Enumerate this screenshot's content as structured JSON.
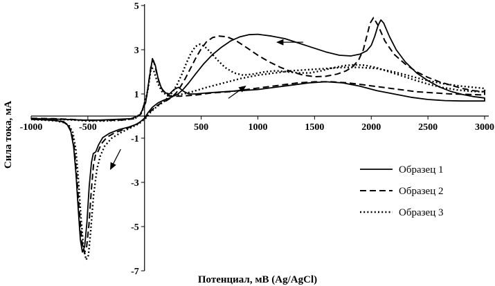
{
  "chart_data": {
    "type": "line",
    "title": "",
    "xlabel": "Потенциал, мВ (Ag/AgCl)",
    "ylabel": "Сила тока, мА",
    "xlim": [
      -1000,
      3000
    ],
    "ylim": [
      -7,
      5
    ],
    "grid": false,
    "legend_position": "right-middle",
    "line_color": "#000000",
    "x_ticks": [
      {
        "v": -1000,
        "label": "-1000"
      },
      {
        "v": -500,
        "label": "-500"
      },
      {
        "v": 0,
        "label": ""
      },
      {
        "v": 500,
        "label": "500"
      },
      {
        "v": 1000,
        "label": "1000"
      },
      {
        "v": 1500,
        "label": "1500"
      },
      {
        "v": 2000,
        "label": "2000"
      },
      {
        "v": 2500,
        "label": "2500"
      },
      {
        "v": 3000,
        "label": "3000"
      }
    ],
    "y_ticks": [
      {
        "v": 5,
        "label": "5"
      },
      {
        "v": 3,
        "label": "3"
      },
      {
        "v": 1,
        "label": "1"
      },
      {
        "v": -1,
        "label": "-1"
      },
      {
        "v": -3,
        "label": "-3"
      },
      {
        "v": -5,
        "label": "-5"
      },
      {
        "v": -7,
        "label": "-7"
      }
    ],
    "series": [
      {
        "name": "Образец 1",
        "style": "solid",
        "points": [
          [
            -1000,
            -0.12
          ],
          [
            -850,
            -0.13
          ],
          [
            -700,
            -0.15
          ],
          [
            -550,
            -0.18
          ],
          [
            -400,
            -0.18
          ],
          [
            -250,
            -0.15
          ],
          [
            -120,
            -0.12
          ],
          [
            -40,
            0.05
          ],
          [
            10,
            0.6
          ],
          [
            45,
            1.8
          ],
          [
            70,
            2.6
          ],
          [
            95,
            2.3
          ],
          [
            120,
            1.7
          ],
          [
            150,
            1.25
          ],
          [
            185,
            1.05
          ],
          [
            220,
            1.0
          ],
          [
            260,
            1.2
          ],
          [
            300,
            1.3
          ],
          [
            345,
            1.12
          ],
          [
            390,
            1.0
          ],
          [
            450,
            1.0
          ],
          [
            560,
            1.05
          ],
          [
            700,
            1.1
          ],
          [
            850,
            1.15
          ],
          [
            1000,
            1.2
          ],
          [
            1150,
            1.3
          ],
          [
            1300,
            1.4
          ],
          [
            1450,
            1.5
          ],
          [
            1600,
            1.55
          ],
          [
            1750,
            1.5
          ],
          [
            1900,
            1.35
          ],
          [
            2050,
            1.15
          ],
          [
            2200,
            1.0
          ],
          [
            2350,
            0.85
          ],
          [
            2500,
            0.75
          ],
          [
            2650,
            0.7
          ],
          [
            2800,
            0.68
          ],
          [
            3000,
            0.68
          ],
          [
            3000,
            0.82
          ],
          [
            2900,
            0.88
          ],
          [
            2800,
            0.98
          ],
          [
            2700,
            1.12
          ],
          [
            2600,
            1.32
          ],
          [
            2500,
            1.6
          ],
          [
            2400,
            1.95
          ],
          [
            2300,
            2.45
          ],
          [
            2220,
            3.0
          ],
          [
            2160,
            3.6
          ],
          [
            2110,
            4.2
          ],
          [
            2085,
            4.35
          ],
          [
            2060,
            4.1
          ],
          [
            2030,
            3.6
          ],
          [
            2000,
            3.2
          ],
          [
            1960,
            2.95
          ],
          [
            1900,
            2.8
          ],
          [
            1820,
            2.72
          ],
          [
            1720,
            2.75
          ],
          [
            1600,
            2.9
          ],
          [
            1480,
            3.1
          ],
          [
            1360,
            3.3
          ],
          [
            1240,
            3.5
          ],
          [
            1120,
            3.62
          ],
          [
            1000,
            3.7
          ],
          [
            920,
            3.68
          ],
          [
            840,
            3.58
          ],
          [
            760,
            3.4
          ],
          [
            680,
            3.12
          ],
          [
            600,
            2.78
          ],
          [
            520,
            2.35
          ],
          [
            450,
            1.9
          ],
          [
            390,
            1.5
          ],
          [
            340,
            1.2
          ],
          [
            295,
            1.0
          ],
          [
            255,
            0.9
          ],
          [
            215,
            0.8
          ],
          [
            170,
            0.72
          ],
          [
            120,
            0.6
          ],
          [
            70,
            0.4
          ],
          [
            30,
            0.15
          ],
          [
            0,
            -0.1
          ],
          [
            -60,
            -0.35
          ],
          [
            -140,
            -0.5
          ],
          [
            -230,
            -0.62
          ],
          [
            -310,
            -0.78
          ],
          [
            -370,
            -0.98
          ],
          [
            -405,
            -1.3
          ],
          [
            -430,
            -1.62
          ],
          [
            -452,
            -1.7
          ],
          [
            -468,
            -2.1
          ],
          [
            -488,
            -3.2
          ],
          [
            -508,
            -4.8
          ],
          [
            -528,
            -5.9
          ],
          [
            -548,
            -6.15
          ],
          [
            -566,
            -5.6
          ],
          [
            -585,
            -4.2
          ],
          [
            -605,
            -2.6
          ],
          [
            -625,
            -1.4
          ],
          [
            -650,
            -0.7
          ],
          [
            -680,
            -0.4
          ],
          [
            -720,
            -0.26
          ],
          [
            -790,
            -0.2
          ],
          [
            -880,
            -0.17
          ],
          [
            -1000,
            -0.15
          ]
        ]
      },
      {
        "name": "Образец 2",
        "style": "dashed",
        "points": [
          [
            -1000,
            -0.1
          ],
          [
            -800,
            -0.12
          ],
          [
            -650,
            -0.15
          ],
          [
            -500,
            -0.2
          ],
          [
            -350,
            -0.2
          ],
          [
            -200,
            -0.18
          ],
          [
            -90,
            -0.12
          ],
          [
            -30,
            0.1
          ],
          [
            20,
            0.9
          ],
          [
            55,
            2.2
          ],
          [
            80,
            2.5
          ],
          [
            105,
            2.0
          ],
          [
            135,
            1.4
          ],
          [
            175,
            1.05
          ],
          [
            230,
            0.9
          ],
          [
            320,
            0.9
          ],
          [
            450,
            0.95
          ],
          [
            600,
            1.05
          ],
          [
            750,
            1.1
          ],
          [
            900,
            1.2
          ],
          [
            1050,
            1.3
          ],
          [
            1200,
            1.4
          ],
          [
            1350,
            1.5
          ],
          [
            1500,
            1.55
          ],
          [
            1650,
            1.55
          ],
          [
            1800,
            1.5
          ],
          [
            1950,
            1.4
          ],
          [
            2100,
            1.3
          ],
          [
            2250,
            1.2
          ],
          [
            2400,
            1.1
          ],
          [
            2550,
            1.05
          ],
          [
            2700,
            1.0
          ],
          [
            2850,
            0.98
          ],
          [
            3000,
            0.95
          ],
          [
            3000,
            1.1
          ],
          [
            2900,
            1.15
          ],
          [
            2800,
            1.25
          ],
          [
            2700,
            1.4
          ],
          [
            2600,
            1.55
          ],
          [
            2500,
            1.75
          ],
          [
            2400,
            2.0
          ],
          [
            2300,
            2.35
          ],
          [
            2200,
            2.8
          ],
          [
            2120,
            3.4
          ],
          [
            2060,
            4.1
          ],
          [
            2020,
            4.45
          ],
          [
            1990,
            4.2
          ],
          [
            1960,
            3.6
          ],
          [
            1930,
            3.0
          ],
          [
            1890,
            2.55
          ],
          [
            1840,
            2.25
          ],
          [
            1780,
            2.05
          ],
          [
            1700,
            1.9
          ],
          [
            1600,
            1.8
          ],
          [
            1500,
            1.78
          ],
          [
            1400,
            1.85
          ],
          [
            1300,
            2.0
          ],
          [
            1200,
            2.2
          ],
          [
            1100,
            2.45
          ],
          [
            1000,
            2.75
          ],
          [
            900,
            3.1
          ],
          [
            810,
            3.4
          ],
          [
            730,
            3.58
          ],
          [
            660,
            3.62
          ],
          [
            600,
            3.55
          ],
          [
            545,
            3.35
          ],
          [
            495,
            3.0
          ],
          [
            450,
            2.6
          ],
          [
            405,
            2.15
          ],
          [
            360,
            1.7
          ],
          [
            320,
            1.35
          ],
          [
            280,
            1.05
          ],
          [
            240,
            0.85
          ],
          [
            195,
            0.7
          ],
          [
            150,
            0.6
          ],
          [
            105,
            0.45
          ],
          [
            60,
            0.25
          ],
          [
            20,
            0.0
          ],
          [
            -30,
            -0.25
          ],
          [
            -100,
            -0.45
          ],
          [
            -180,
            -0.6
          ],
          [
            -260,
            -0.75
          ],
          [
            -330,
            -0.95
          ],
          [
            -380,
            -1.25
          ],
          [
            -410,
            -1.6
          ],
          [
            -430,
            -1.7
          ],
          [
            -450,
            -2.2
          ],
          [
            -470,
            -3.4
          ],
          [
            -490,
            -4.9
          ],
          [
            -510,
            -5.9
          ],
          [
            -530,
            -6.2
          ],
          [
            -552,
            -5.7
          ],
          [
            -575,
            -4.3
          ],
          [
            -598,
            -2.7
          ],
          [
            -620,
            -1.4
          ],
          [
            -645,
            -0.7
          ],
          [
            -675,
            -0.4
          ],
          [
            -715,
            -0.25
          ],
          [
            -790,
            -0.2
          ],
          [
            -900,
            -0.16
          ],
          [
            -1000,
            -0.14
          ]
        ]
      },
      {
        "name": "Образец 3",
        "style": "dotted",
        "points": [
          [
            -1000,
            -0.12
          ],
          [
            -820,
            -0.14
          ],
          [
            -660,
            -0.17
          ],
          [
            -500,
            -0.22
          ],
          [
            -340,
            -0.22
          ],
          [
            -190,
            -0.18
          ],
          [
            -80,
            -0.1
          ],
          [
            -20,
            0.2
          ],
          [
            30,
            1.2
          ],
          [
            60,
            2.25
          ],
          [
            85,
            2.0
          ],
          [
            115,
            1.5
          ],
          [
            155,
            1.1
          ],
          [
            210,
            0.9
          ],
          [
            300,
            0.95
          ],
          [
            420,
            1.1
          ],
          [
            550,
            1.3
          ],
          [
            700,
            1.5
          ],
          [
            850,
            1.7
          ],
          [
            1000,
            1.85
          ],
          [
            1150,
            1.95
          ],
          [
            1300,
            2.05
          ],
          [
            1450,
            2.1
          ],
          [
            1600,
            2.15
          ],
          [
            1750,
            2.2
          ],
          [
            1900,
            2.2
          ],
          [
            2050,
            2.15
          ],
          [
            2200,
            2.0
          ],
          [
            2350,
            1.8
          ],
          [
            2500,
            1.6
          ],
          [
            2650,
            1.45
          ],
          [
            2800,
            1.35
          ],
          [
            3000,
            1.25
          ],
          [
            3000,
            1.1
          ],
          [
            2880,
            1.12
          ],
          [
            2760,
            1.18
          ],
          [
            2640,
            1.28
          ],
          [
            2520,
            1.42
          ],
          [
            2400,
            1.6
          ],
          [
            2280,
            1.8
          ],
          [
            2160,
            2.0
          ],
          [
            2040,
            2.2
          ],
          [
            1940,
            2.3
          ],
          [
            1850,
            2.32
          ],
          [
            1760,
            2.28
          ],
          [
            1660,
            2.18
          ],
          [
            1560,
            2.05
          ],
          [
            1460,
            1.95
          ],
          [
            1360,
            1.95
          ],
          [
            1260,
            2.0
          ],
          [
            1160,
            2.05
          ],
          [
            1060,
            2.0
          ],
          [
            960,
            1.9
          ],
          [
            870,
            1.85
          ],
          [
            790,
            1.95
          ],
          [
            710,
            2.2
          ],
          [
            640,
            2.55
          ],
          [
            580,
            2.9
          ],
          [
            530,
            3.15
          ],
          [
            490,
            3.25
          ],
          [
            450,
            3.15
          ],
          [
            410,
            2.85
          ],
          [
            370,
            2.4
          ],
          [
            330,
            1.9
          ],
          [
            290,
            1.45
          ],
          [
            250,
            1.1
          ],
          [
            210,
            0.85
          ],
          [
            170,
            0.65
          ],
          [
            130,
            0.5
          ],
          [
            90,
            0.35
          ],
          [
            50,
            0.15
          ],
          [
            10,
            -0.1
          ],
          [
            -50,
            -0.35
          ],
          [
            -130,
            -0.55
          ],
          [
            -210,
            -0.75
          ],
          [
            -290,
            -1.0
          ],
          [
            -350,
            -1.35
          ],
          [
            -390,
            -1.8
          ],
          [
            -420,
            -2.4
          ],
          [
            -450,
            -3.6
          ],
          [
            -475,
            -5.2
          ],
          [
            -495,
            -6.3
          ],
          [
            -515,
            -6.5
          ],
          [
            -537,
            -6.0
          ],
          [
            -560,
            -4.6
          ],
          [
            -583,
            -2.9
          ],
          [
            -606,
            -1.5
          ],
          [
            -632,
            -0.75
          ],
          [
            -662,
            -0.45
          ],
          [
            -705,
            -0.3
          ],
          [
            -780,
            -0.22
          ],
          [
            -890,
            -0.18
          ],
          [
            -1000,
            -0.16
          ]
        ]
      }
    ],
    "annotations": [
      {
        "name": "reverse-sweep-arrow",
        "x1": 1400,
        "y1": 3.34,
        "x2": 1170,
        "y2": 3.34
      },
      {
        "name": "forward-sweep-arrow",
        "x1": 740,
        "y1": 0.8,
        "x2": 890,
        "y2": 1.35
      },
      {
        "name": "cathodic-sweep-arrow",
        "x1": -210,
        "y1": -1.5,
        "x2": -300,
        "y2": -2.4
      }
    ],
    "legend": {
      "entries": [
        "Образец 1",
        "Образец 2",
        "Образец 3"
      ]
    }
  }
}
